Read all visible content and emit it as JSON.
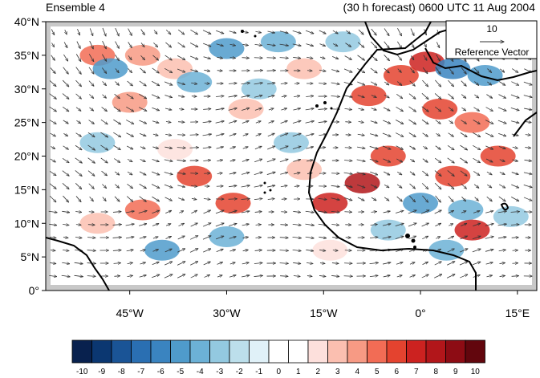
{
  "header": {
    "left": "Ensemble 4",
    "right": "(30 h forecast) 0600 UTC 11 Aug 2004"
  },
  "reference_vector": {
    "magnitude": "10",
    "label": "Reference Vector"
  },
  "axes": {
    "lat_labels": [
      "40°N",
      "35°N",
      "30°N",
      "25°N",
      "20°N",
      "15°N",
      "10°N",
      "5°N",
      "0°"
    ],
    "lon_labels": [
      "45°W",
      "30°W",
      "15°W",
      "0°",
      "15°E"
    ],
    "lon_range": [
      -58,
      18
    ],
    "lat_range": [
      0,
      40
    ]
  },
  "colorbar": {
    "labels": [
      "-10",
      "-9",
      "-8",
      "-7",
      "-6",
      "-5",
      "-4",
      "-3",
      "-2",
      "-1",
      "0",
      "1",
      "2",
      "3",
      "4",
      "5",
      "6",
      "7",
      "8",
      "9",
      "10"
    ],
    "colors": [
      "#08214e",
      "#0b3771",
      "#1a5496",
      "#2a6fb2",
      "#3a84c0",
      "#4f9bcb",
      "#6cb1d6",
      "#93c9e0",
      "#bcdfeb",
      "#e0f1f8",
      "#ffffff",
      "#ffffff",
      "#fde0dc",
      "#fbbfb0",
      "#f79a84",
      "#f26c55",
      "#e4432f",
      "#cc2220",
      "#b2161a",
      "#8d0c14",
      "#62060d"
    ]
  },
  "anomalies": [
    {
      "lon": -50,
      "lat": 35,
      "v": 5
    },
    {
      "lon": -43,
      "lat": 35,
      "v": 4
    },
    {
      "lon": -38,
      "lat": 33,
      "v": 3
    },
    {
      "lon": -48,
      "lat": 33,
      "v": -5
    },
    {
      "lon": -35,
      "lat": 31,
      "v": -4
    },
    {
      "lon": -45,
      "lat": 28,
      "v": 4
    },
    {
      "lon": -30,
      "lat": 36,
      "v": -5
    },
    {
      "lon": -22,
      "lat": 37,
      "v": -4
    },
    {
      "lon": -18,
      "lat": 33,
      "v": 3
    },
    {
      "lon": -25,
      "lat": 30,
      "v": -3
    },
    {
      "lon": -27,
      "lat": 27,
      "v": 3
    },
    {
      "lon": -50,
      "lat": 22,
      "v": -3
    },
    {
      "lon": -38,
      "lat": 21,
      "v": 2
    },
    {
      "lon": -35,
      "lat": 17,
      "v": 6
    },
    {
      "lon": -29,
      "lat": 13,
      "v": 6
    },
    {
      "lon": -43,
      "lat": 12,
      "v": 5
    },
    {
      "lon": -50,
      "lat": 10,
      "v": 3
    },
    {
      "lon": -40,
      "lat": 6,
      "v": -5
    },
    {
      "lon": -30,
      "lat": 8,
      "v": -4
    },
    {
      "lon": -20,
      "lat": 22,
      "v": -3
    },
    {
      "lon": -12,
      "lat": 37,
      "v": -3
    },
    {
      "lon": -8,
      "lat": 29,
      "v": 6
    },
    {
      "lon": -3,
      "lat": 32,
      "v": 6
    },
    {
      "lon": 1,
      "lat": 34,
      "v": 7
    },
    {
      "lon": 5,
      "lat": 33,
      "v": -6
    },
    {
      "lon": 10,
      "lat": 32,
      "v": -5
    },
    {
      "lon": 3,
      "lat": 27,
      "v": 6
    },
    {
      "lon": 8,
      "lat": 25,
      "v": 5
    },
    {
      "lon": -5,
      "lat": 20,
      "v": 6
    },
    {
      "lon": -9,
      "lat": 16,
      "v": 8
    },
    {
      "lon": -14,
      "lat": 13,
      "v": 7
    },
    {
      "lon": 5,
      "lat": 17,
      "v": 6
    },
    {
      "lon": 12,
      "lat": 20,
      "v": 6
    },
    {
      "lon": 7,
      "lat": 12,
      "v": -4
    },
    {
      "lon": 14,
      "lat": 11,
      "v": -3
    },
    {
      "lon": 8,
      "lat": 9,
      "v": 7
    },
    {
      "lon": 0,
      "lat": 13,
      "v": -5
    },
    {
      "lon": 4,
      "lat": 6,
      "v": -4
    },
    {
      "lon": -14,
      "lat": 6,
      "v": 2
    },
    {
      "lon": -5,
      "lat": 9,
      "v": -3
    },
    {
      "lon": -18,
      "lat": 18,
      "v": 3
    }
  ]
}
